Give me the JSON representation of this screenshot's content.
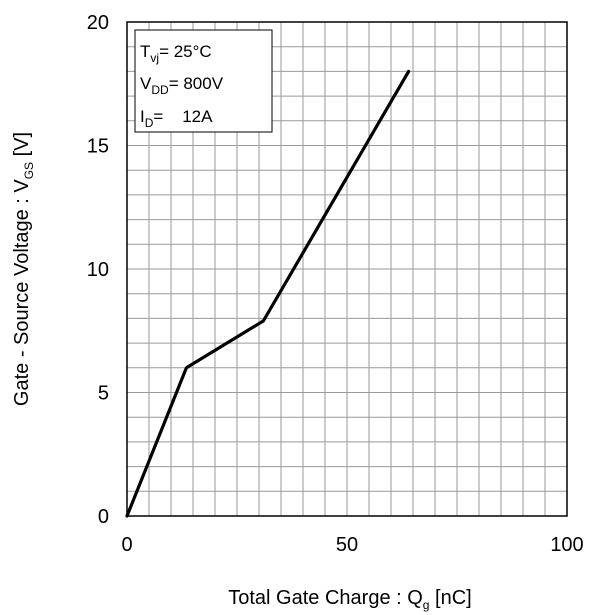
{
  "chart_data": {
    "type": "line",
    "xlabel": "Total Gate Charge : Q",
    "xlabel_sub": "g",
    "xlabel_unit": " [nC]",
    "ylabel": "Gate - Source Voltage : V",
    "ylabel_sub": "GS",
    "ylabel_unit": " [V]",
    "xlim": [
      0,
      100
    ],
    "ylim": [
      0,
      20
    ],
    "x_ticks": [
      0,
      50,
      100
    ],
    "y_ticks": [
      0,
      5,
      10,
      15,
      20
    ],
    "x_ticks_labels": [
      "0",
      "50",
      "100"
    ],
    "y_ticks_labels": [
      "0",
      "5",
      "10",
      "15",
      "20"
    ],
    "minor_x_step": 5,
    "minor_y_step": 1,
    "grid": true,
    "series": [
      {
        "x": [
          0,
          13.5,
          31,
          64
        ],
        "y": [
          0,
          6,
          7.9,
          18
        ],
        "color": "#000000"
      }
    ],
    "legend": {
      "placement": "top-left",
      "lines": [
        {
          "label": "T",
          "sub": "vj",
          "value": "= 25°C"
        },
        {
          "label": "V",
          "sub": "DD",
          "value": "= 800V"
        },
        {
          "label": "I",
          "sub": "D",
          "value": "=    12A"
        }
      ]
    }
  }
}
